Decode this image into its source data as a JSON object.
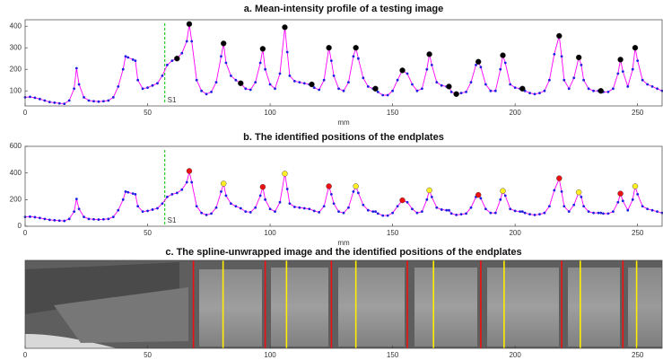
{
  "chart_data": [
    {
      "type": "line",
      "title": "a. Mean-intensity profile of a testing image",
      "xlabel": "mm",
      "x": [
        0,
        2,
        4,
        6,
        8,
        10,
        12,
        14,
        16,
        18,
        20,
        21,
        22,
        24,
        26,
        28,
        30,
        32,
        34,
        36,
        38,
        40,
        41,
        42,
        44,
        45,
        46,
        48,
        50,
        52,
        54,
        56,
        58,
        60,
        62,
        64,
        66,
        67,
        68,
        70,
        72,
        74,
        76,
        78,
        80,
        81,
        82,
        84,
        86,
        88,
        90,
        92,
        94,
        96,
        97,
        98,
        100,
        102,
        104,
        106,
        107,
        108,
        110,
        112,
        114,
        116,
        118,
        120,
        122,
        124,
        125,
        126,
        128,
        130,
        132,
        134,
        135,
        136,
        138,
        140,
        142,
        143,
        144,
        146,
        148,
        150,
        152,
        154,
        156,
        158,
        160,
        162,
        164,
        165,
        166,
        168,
        170,
        172,
        173,
        174,
        176,
        178,
        180,
        182,
        184,
        185,
        186,
        188,
        190,
        192,
        194,
        195,
        196,
        198,
        200,
        202,
        203,
        204,
        206,
        208,
        210,
        212,
        214,
        216,
        218,
        219,
        220,
        222,
        224,
        226,
        227,
        228,
        230,
        232,
        234,
        235,
        236,
        238,
        240,
        242,
        243,
        244,
        246,
        248,
        249,
        250,
        252,
        254,
        256,
        258,
        260
      ],
      "series": [
        {
          "color": "#1f1fe0",
          "line_color": "#ff00ff",
          "values": [
            70,
            72,
            68,
            62,
            55,
            48,
            45,
            42,
            40,
            55,
            110,
            205,
            130,
            70,
            55,
            52,
            50,
            52,
            55,
            70,
            120,
            200,
            260,
            255,
            245,
            240,
            150,
            110,
            115,
            125,
            135,
            170,
            220,
            240,
            250,
            275,
            330,
            410,
            330,
            150,
            100,
            85,
            95,
            140,
            260,
            320,
            230,
            170,
            150,
            135,
            110,
            105,
            140,
            230,
            295,
            200,
            130,
            110,
            180,
            395,
            280,
            170,
            145,
            140,
            135,
            130,
            115,
            105,
            150,
            300,
            240,
            170,
            110,
            100,
            140,
            260,
            300,
            250,
            160,
            120,
            110,
            110,
            95,
            80,
            80,
            100,
            150,
            195,
            180,
            130,
            100,
            110,
            200,
            270,
            220,
            140,
            125,
            120,
            120,
            95,
            85,
            90,
            95,
            140,
            220,
            235,
            210,
            130,
            100,
            100,
            200,
            265,
            230,
            130,
            115,
            110,
            110,
            100,
            90,
            85,
            90,
            100,
            150,
            270,
            355,
            260,
            150,
            110,
            160,
            255,
            220,
            150,
            110,
            100,
            100,
            100,
            95,
            95,
            110,
            180,
            245,
            190,
            120,
            200,
            300,
            240,
            150,
            130,
            120,
            110,
            100
          ]
        }
      ],
      "markers": {
        "color": "#000000",
        "x": [
          62,
          67,
          81,
          88,
          97,
          106,
          117,
          124,
          135,
          143,
          154,
          165,
          173,
          176,
          185,
          195,
          203,
          218,
          226,
          235,
          243,
          249
        ],
        "values": [
          250,
          410,
          320,
          135,
          295,
          395,
          130,
          300,
          300,
          110,
          195,
          270,
          120,
          85,
          235,
          265,
          110,
          355,
          255,
          100,
          245,
          300
        ]
      },
      "annotation": {
        "text": "S1",
        "x": 57,
        "color": "#22cc22"
      },
      "xlim": [
        0,
        260
      ],
      "xticks": [
        0,
        50,
        100,
        150,
        200,
        250
      ],
      "ylim": [
        30,
        430
      ],
      "yticks": [
        100,
        200,
        300,
        400
      ]
    },
    {
      "type": "line",
      "title": "b. The identified positions of the endplates",
      "xlabel": "mm",
      "x": [
        0,
        2,
        4,
        6,
        8,
        10,
        12,
        14,
        16,
        18,
        20,
        21,
        22,
        24,
        26,
        28,
        30,
        32,
        34,
        36,
        38,
        40,
        41,
        42,
        44,
        45,
        46,
        48,
        50,
        52,
        54,
        56,
        58,
        60,
        62,
        64,
        66,
        67,
        68,
        70,
        72,
        74,
        76,
        78,
        80,
        81,
        82,
        84,
        86,
        88,
        90,
        92,
        94,
        96,
        97,
        98,
        100,
        102,
        104,
        106,
        107,
        108,
        110,
        112,
        114,
        116,
        118,
        120,
        122,
        124,
        125,
        126,
        128,
        130,
        132,
        134,
        135,
        136,
        138,
        140,
        142,
        143,
        144,
        146,
        148,
        150,
        152,
        154,
        156,
        158,
        160,
        162,
        164,
        165,
        166,
        168,
        170,
        172,
        173,
        174,
        176,
        178,
        180,
        182,
        184,
        185,
        186,
        188,
        190,
        192,
        194,
        195,
        196,
        198,
        200,
        202,
        203,
        204,
        206,
        208,
        210,
        212,
        214,
        216,
        218,
        219,
        220,
        222,
        224,
        226,
        227,
        228,
        230,
        232,
        234,
        235,
        236,
        238,
        240,
        242,
        243,
        244,
        246,
        248,
        249,
        250,
        252,
        254,
        256,
        258,
        260
      ],
      "series": [
        {
          "color": "#1f1fe0",
          "line_color": "#ff00ff",
          "values": [
            70,
            72,
            68,
            62,
            55,
            48,
            45,
            42,
            40,
            55,
            110,
            205,
            130,
            70,
            55,
            52,
            50,
            52,
            55,
            70,
            120,
            200,
            260,
            255,
            245,
            240,
            150,
            110,
            115,
            125,
            135,
            170,
            220,
            240,
            250,
            275,
            330,
            410,
            330,
            150,
            100,
            85,
            95,
            140,
            260,
            320,
            230,
            170,
            150,
            135,
            110,
            105,
            140,
            230,
            295,
            200,
            130,
            110,
            180,
            395,
            280,
            170,
            145,
            140,
            135,
            130,
            115,
            105,
            150,
            300,
            240,
            170,
            110,
            100,
            140,
            260,
            300,
            250,
            160,
            120,
            110,
            110,
            95,
            80,
            80,
            100,
            150,
            195,
            180,
            130,
            100,
            110,
            200,
            270,
            220,
            140,
            125,
            120,
            120,
            95,
            85,
            90,
            95,
            140,
            220,
            235,
            210,
            130,
            100,
            100,
            200,
            265,
            230,
            130,
            115,
            110,
            110,
            100,
            90,
            85,
            90,
            100,
            150,
            270,
            355,
            260,
            150,
            110,
            160,
            255,
            220,
            150,
            110,
            100,
            100,
            100,
            95,
            95,
            110,
            180,
            245,
            190,
            120,
            200,
            300,
            240,
            150,
            130,
            120,
            110,
            100
          ]
        }
      ],
      "marker_sets": [
        {
          "color": "#ee1111",
          "x": [
            67,
            97,
            124,
            154,
            185,
            218,
            243
          ],
          "values": [
            415,
            295,
            300,
            195,
            235,
            360,
            245
          ]
        },
        {
          "color": "#ffee22",
          "x": [
            81,
            106,
            135,
            165,
            195,
            226,
            249
          ],
          "values": [
            320,
            395,
            300,
            270,
            265,
            255,
            300
          ]
        }
      ],
      "annotation": {
        "text": "S1",
        "x": 57,
        "color": "#22cc22"
      },
      "xlim": [
        0,
        260
      ],
      "xticks": [
        0,
        50,
        100,
        150,
        200,
        250
      ],
      "ylim": [
        0,
        600
      ],
      "yticks": [
        0,
        200,
        400,
        600
      ]
    },
    {
      "type": "image",
      "title": "c. The spline-unwrapped image and the identified positions of the endplates",
      "lines": [
        {
          "color": "#ee1111",
          "x": [
            68.7,
            98,
            125,
            156,
            186,
            219,
            244
          ]
        },
        {
          "color": "#ffee00",
          "x": [
            80.8,
            106.7,
            135,
            166.7,
            195.5,
            226.6,
            249.6
          ]
        }
      ],
      "xlim": [
        0,
        260
      ],
      "xticks": [
        0,
        50,
        100,
        150,
        200,
        250
      ]
    }
  ]
}
